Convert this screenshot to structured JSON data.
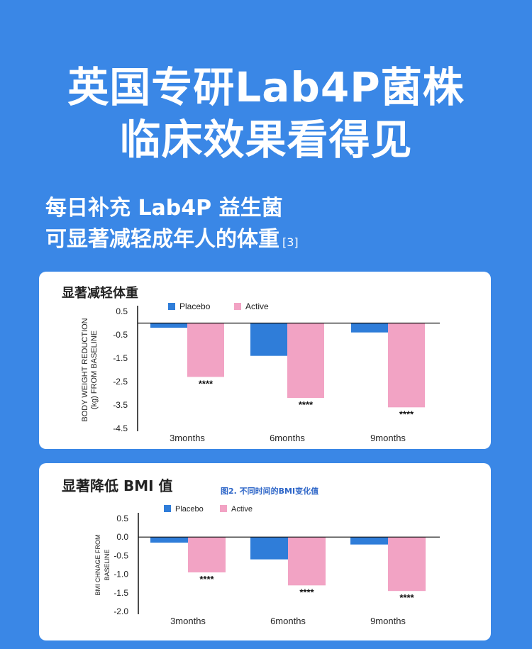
{
  "headline": {
    "line1": "英国专研Lab4P菌株",
    "line2": "临床效果看得见"
  },
  "subtitle": {
    "line1": "每日补充 Lab4P 益生菌",
    "line2": "可显著减轻成年人的体重",
    "ref": "[3]"
  },
  "card1": {
    "title": "显著减轻体重"
  },
  "card2": {
    "title": "显著降低 BMI 值",
    "caption": "图2. 不同时间的BMI变化值"
  },
  "colors": {
    "background": "#3a87e6",
    "placebo": "#2f7dd9",
    "active": "#f2a3c4"
  },
  "chart_data": [
    {
      "type": "bar",
      "title": "显著减轻体重",
      "ylabel": "BODY WEIGHT REDUCTION (kg) FROM BASELINE",
      "ylabel_lines": [
        "BODY WEIGHT REDUCTION",
        "(kg) FROM BASELINE"
      ],
      "categories": [
        "3months",
        "6months",
        "9months"
      ],
      "series": [
        {
          "name": "Placebo",
          "values": [
            -0.2,
            -1.4,
            -0.4
          ]
        },
        {
          "name": "Active",
          "values": [
            -2.3,
            -3.2,
            -3.6
          ]
        }
      ],
      "annotations": [
        "****",
        "****",
        "****"
      ],
      "ylim": [
        -4.5,
        0.5
      ],
      "yticks": [
        "0.5",
        "-0.5",
        "-1.5",
        "-2.5",
        "-3.5",
        "-4.5"
      ],
      "legend": "top"
    },
    {
      "type": "bar",
      "title": "显著降低 BMI 值",
      "ylabel": "BMI CHNAGE FROM BASELINE",
      "ylabel_lines": [
        "BMI CHNAGE  FROM",
        "BASELINE"
      ],
      "categories": [
        "3months",
        "6months",
        "9months"
      ],
      "series": [
        {
          "name": "Placebo",
          "values": [
            -0.15,
            -0.6,
            -0.2
          ]
        },
        {
          "name": "Active",
          "values": [
            -0.95,
            -1.3,
            -1.45
          ]
        }
      ],
      "annotations": [
        "****",
        "****",
        "****"
      ],
      "ylim": [
        -2.0,
        0.5
      ],
      "yticks": [
        "0.5",
        "0.0",
        "-0.5",
        "-1.0",
        "-1.5",
        "-2.0"
      ],
      "legend": "top"
    }
  ]
}
